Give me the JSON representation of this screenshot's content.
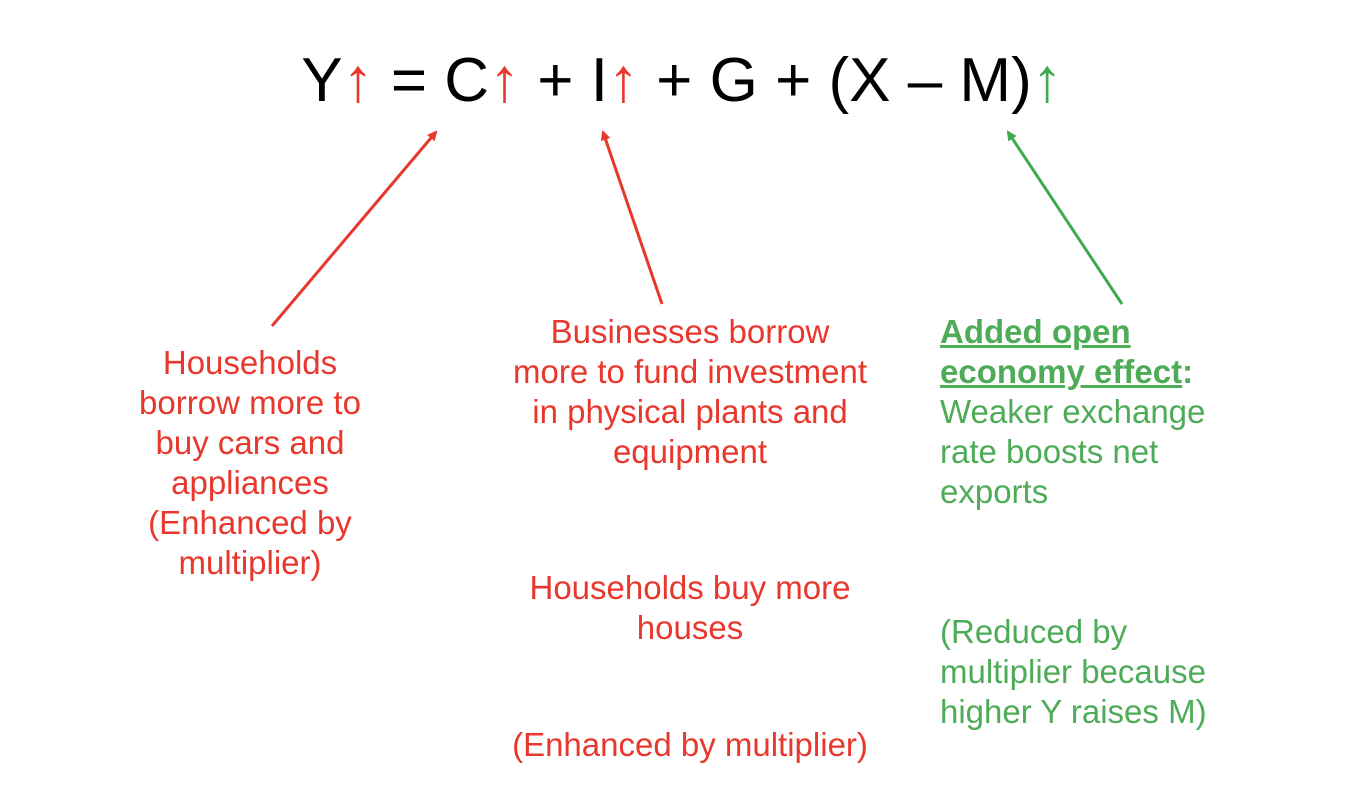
{
  "equation": {
    "parts": [
      "Y",
      "↑",
      " = C",
      "↑",
      " + I",
      "↑",
      " + G + (X – M)",
      "↑"
    ],
    "arrow_colors": {
      "red": "#e8382d",
      "green": "#3ea94e"
    }
  },
  "consumption": {
    "lines": [
      "Households",
      "borrow more to",
      "buy cars and",
      "appliances",
      "(Enhanced by",
      "multiplier)"
    ]
  },
  "investment": {
    "lines": [
      "Businesses borrow",
      "more to fund investment",
      "in physical plants and",
      "equipment"
    ],
    "housing_lines": [
      "Households buy more",
      "houses"
    ],
    "note": "(Enhanced by multiplier)"
  },
  "net_exports": {
    "heading_lines": [
      "Added open",
      "economy effect"
    ],
    "heading_colon": ":",
    "lines": [
      "Weaker exchange",
      "rate boosts net",
      "exports"
    ],
    "note_lines": [
      "(Reduced by",
      "multiplier because",
      "higher Y raises M)"
    ]
  }
}
